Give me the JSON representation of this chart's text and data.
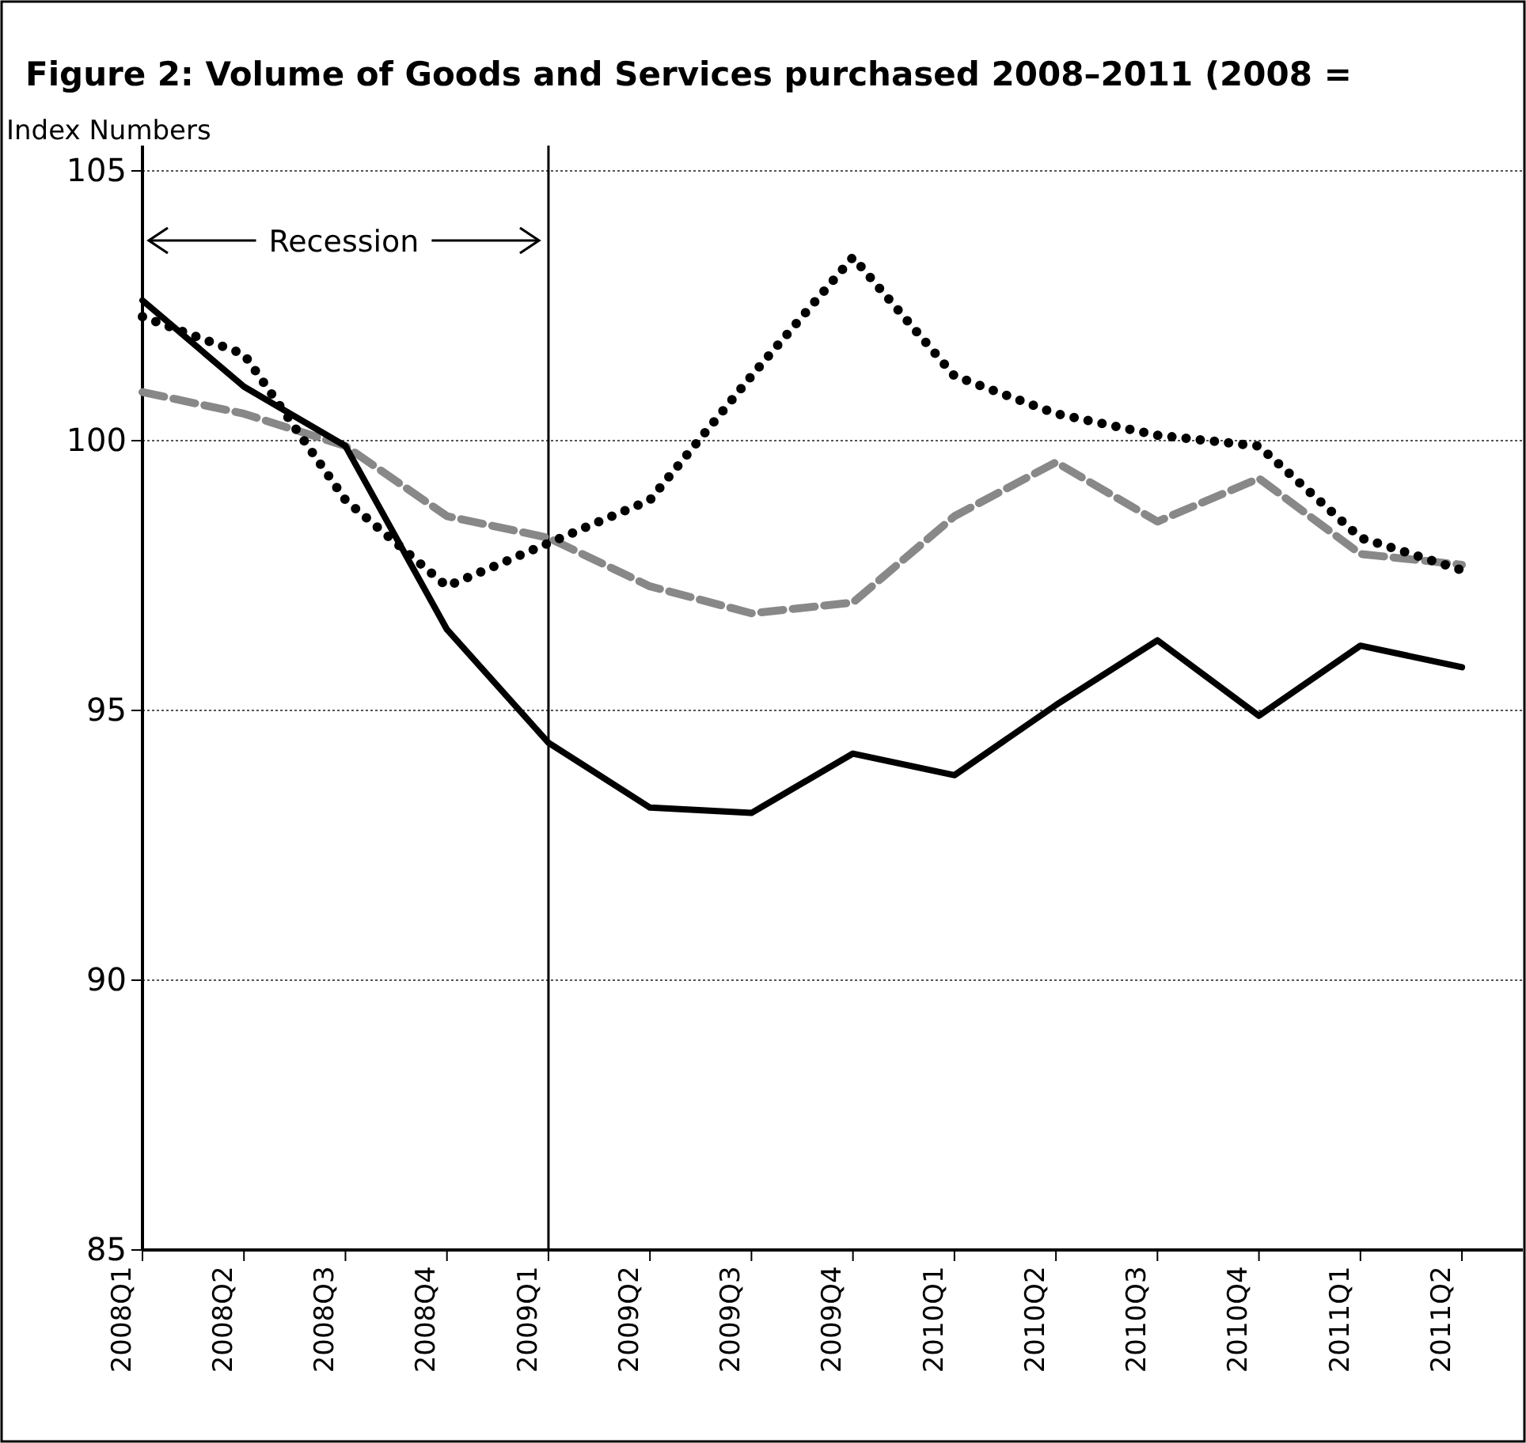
{
  "chart_data": {
    "type": "line",
    "title": "Figure 2: Volume of Goods and Services purchased 2008–2011 (2008 =",
    "ylabel": "Index Numbers",
    "categories": [
      "2008Q1",
      "2008Q2",
      "2008Q3",
      "2008Q4",
      "2009Q1",
      "2009Q2",
      "2009Q3",
      "2009Q4",
      "2010Q1",
      "2010Q2",
      "2010Q3",
      "2010Q4",
      "2011Q1",
      "2011Q2"
    ],
    "series": [
      {
        "color": "#000000",
        "line_style": "solid",
        "values": [
          102.6,
          101.0,
          99.9,
          96.5,
          94.4,
          93.2,
          93.1,
          94.2,
          93.8,
          95.1,
          96.3,
          94.9,
          96.2,
          95.8
        ]
      },
      {
        "color": "#000000",
        "line_style": "dotted",
        "values": [
          102.3,
          101.6,
          98.9,
          97.3,
          98.1,
          98.9,
          101.2,
          103.4,
          101.2,
          100.5,
          100.1,
          99.9,
          98.2,
          97.6
        ]
      },
      {
        "color": "#888888",
        "line_style": "dashed",
        "values": [
          100.9,
          100.5,
          99.9,
          98.6,
          98.2,
          97.3,
          96.8,
          97.0,
          98.6,
          99.6,
          98.5,
          99.3,
          97.9,
          97.7
        ]
      }
    ],
    "ylim": [
      85,
      105
    ],
    "yticks": [
      85,
      90,
      95,
      100,
      105
    ],
    "grid": "y",
    "ref_lines": [
      {
        "axis": "x",
        "value": "2009Q1"
      }
    ],
    "annotations": [
      "Recession"
    ],
    "marker": "none",
    "legend": false
  }
}
